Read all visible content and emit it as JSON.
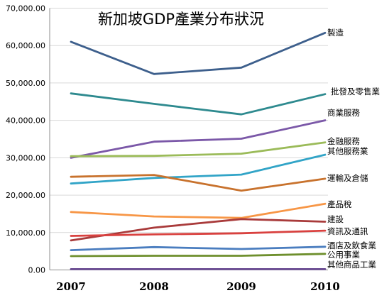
{
  "chart_data": {
    "type": "line",
    "title": "新加坡GDP產業分布狀況",
    "x": [
      "2007",
      "2008",
      "2009",
      "2010"
    ],
    "ylim": [
      0,
      70000
    ],
    "y_ticks": [
      "0.00",
      "10,000.00",
      "20,000.00",
      "30,000.00",
      "40,000.00",
      "50,000.00",
      "60,000.00",
      "70,000.00"
    ],
    "y_tick_values": [
      0,
      10000,
      20000,
      30000,
      40000,
      50000,
      60000,
      70000
    ],
    "grid": "horizontal",
    "legend": "labels at right end of each line",
    "series": [
      {
        "name": "製造",
        "color": "#3d5f8c",
        "values": [
          61000,
          52400,
          54100,
          63400
        ]
      },
      {
        "name": "批發及零售業",
        "color": "#2e8a8f",
        "values": [
          47200,
          44400,
          41600,
          47000
        ]
      },
      {
        "name": "商業服務",
        "color": "#7b58a8",
        "values": [
          30000,
          34300,
          35100,
          40000
        ]
      },
      {
        "name": "金融服務",
        "color": "#9bbb59",
        "values": [
          30400,
          30500,
          31100,
          34100
        ]
      },
      {
        "name": "其他服務業",
        "color": "#31a4c7",
        "values": [
          23100,
          24600,
          25500,
          30800
        ]
      },
      {
        "name": "運輸及倉儲",
        "color": "#c8722d",
        "values": [
          24900,
          25400,
          21200,
          24400
        ]
      },
      {
        "name": "產品稅",
        "color": "#f79646",
        "values": [
          15500,
          14300,
          13900,
          17700
        ]
      },
      {
        "name": "建設",
        "color": "#a93b3b",
        "values": [
          7900,
          11300,
          13600,
          12900
        ]
      },
      {
        "name": "資訊及通訊",
        "color": "#d9413f",
        "values": [
          9100,
          9500,
          9800,
          10500
        ]
      },
      {
        "name": "酒店及飲食業",
        "color": "#4a7dbf",
        "values": [
          5300,
          6100,
          5600,
          6200
        ]
      },
      {
        "name": "公用事業",
        "color": "#6e8f2d",
        "values": [
          3700,
          3800,
          3800,
          4300
        ]
      },
      {
        "name": "其他商品工業",
        "color": "#6b4c93",
        "values": [
          200,
          200,
          200,
          200
        ]
      }
    ]
  }
}
